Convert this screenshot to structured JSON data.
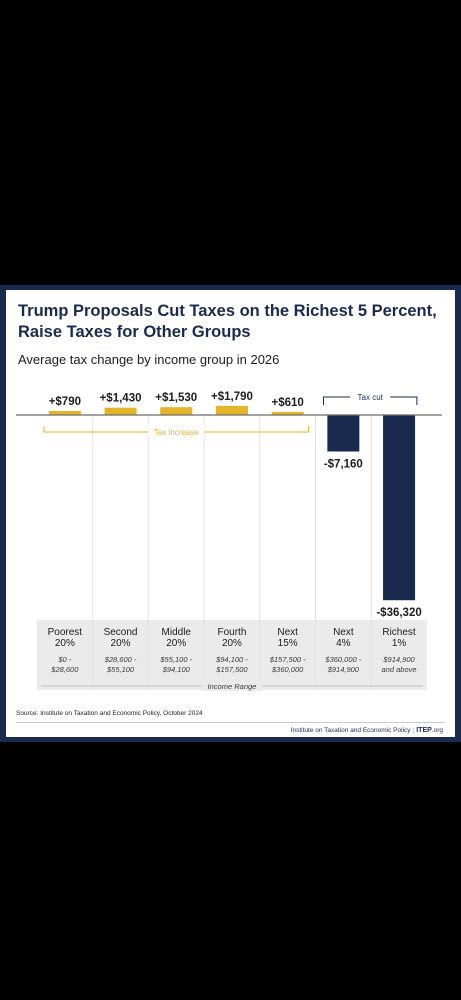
{
  "chart_data": {
    "type": "bar",
    "title": "Trump Proposals Cut Taxes on the Richest 5 Percent, Raise Taxes for Other Groups",
    "subtitle": "Average tax change by income group in 2026",
    "categories": [
      "Poorest 20%",
      "Second 20%",
      "Middle 20%",
      "Fourth 20%",
      "Next 15%",
      "Next 4%",
      "Richest 1%"
    ],
    "category_names": [
      [
        "Poorest",
        "20%"
      ],
      [
        "Second",
        "20%"
      ],
      [
        "Middle",
        "20%"
      ],
      [
        "Fourth",
        "20%"
      ],
      [
        "Next",
        "15%"
      ],
      [
        "Next",
        "4%"
      ],
      [
        "Richest",
        "1%"
      ]
    ],
    "ranges": [
      [
        "$0 -",
        "$28,600"
      ],
      [
        "$28,600 -",
        "$55,100"
      ],
      [
        "$55,100 -",
        "$94,100"
      ],
      [
        "$94,100 -",
        "$157,500"
      ],
      [
        "$157,500 -",
        "$360,000"
      ],
      [
        "$360,000 -",
        "$914,900"
      ],
      [
        "$914,900",
        "and above"
      ]
    ],
    "values": [
      790,
      1430,
      1530,
      1790,
      610,
      -7160,
      -36320
    ],
    "value_labels": [
      "+$790",
      "+$1,430",
      "+$1,530",
      "+$1,790",
      "+$610",
      "-$7,160",
      "-$36,320"
    ],
    "xlabel": "Income Range",
    "ylabel": "",
    "ylim": [
      -36320,
      1790
    ],
    "annotations": {
      "increase": "Tax increase",
      "cut": "Tax cut"
    },
    "colors": {
      "increase": "#e3b42a",
      "cut": "#1a2a4f",
      "bracket_cut": "#1a2a4f",
      "bracket_increase": "#e3b42a"
    },
    "grid": false,
    "legend": "none"
  },
  "source": "Source: Institute on Taxation and Economic Policy, October 2024",
  "footer": {
    "org": "Institute on Taxation and Economic Policy",
    "logo": "ITEP",
    "logo_suffix": ".org"
  }
}
